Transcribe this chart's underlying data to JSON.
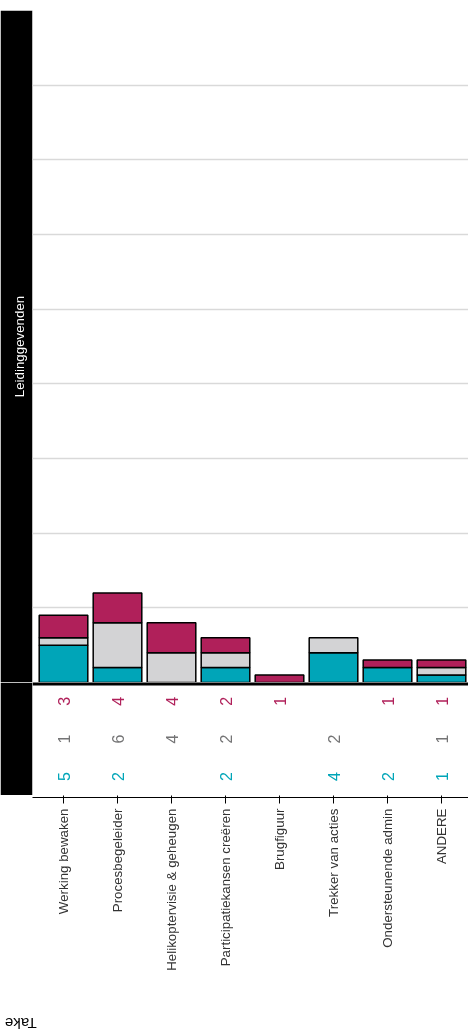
{
  "chart_data": {
    "type": "bar",
    "stacked": true,
    "title": "Take",
    "ylabel": "Leidinggevenden",
    "categories": [
      "Werking bewaken",
      "Procesbegeleider",
      "Helikoptervisie & geheugen",
      "Participatiekansen creëren",
      "Brugfiguur",
      "Trekker van acties",
      "Ondersteunende admin",
      "ANDERE"
    ],
    "series": [
      {
        "color": "#00a5b8",
        "values": [
          5,
          2,
          null,
          2,
          null,
          4,
          2,
          1
        ]
      },
      {
        "color": "#d3d3d5",
        "values": [
          1,
          6,
          4,
          2,
          null,
          2,
          null,
          1
        ]
      },
      {
        "color": "#b0205a",
        "values": [
          3,
          4,
          4,
          2,
          1,
          null,
          1,
          1
        ]
      }
    ],
    "ylim": [
      0,
      90
    ],
    "yticks": [
      {
        "value": 10,
        "label": null
      },
      {
        "value": 20,
        "label": null
      },
      {
        "value": 30,
        "label": null
      },
      {
        "value": 40,
        "label": null
      },
      {
        "value": 50,
        "label": null
      },
      {
        "value": 60,
        "label": null
      },
      {
        "value": 70,
        "label": null
      },
      {
        "value": 80,
        "label": null
      }
    ],
    "grid": "y",
    "tick_labels": "x",
    "data_labels": true
  }
}
